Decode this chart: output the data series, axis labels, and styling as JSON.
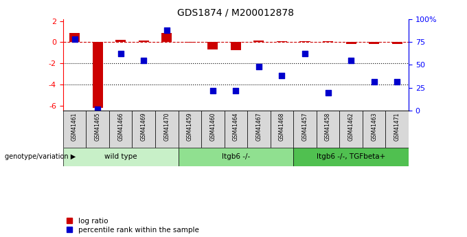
{
  "title": "GDS1874 / M200012878",
  "samples": [
    "GSM41461",
    "GSM41465",
    "GSM41466",
    "GSM41469",
    "GSM41470",
    "GSM41459",
    "GSM41460",
    "GSM41464",
    "GSM41467",
    "GSM41468",
    "GSM41457",
    "GSM41458",
    "GSM41462",
    "GSM41463",
    "GSM41471"
  ],
  "log_ratio": [
    0.85,
    -6.2,
    0.2,
    0.18,
    0.85,
    -0.05,
    -0.7,
    -0.75,
    0.15,
    0.12,
    0.12,
    0.12,
    -0.18,
    -0.15,
    -0.15
  ],
  "percentile": [
    78,
    2,
    62,
    55,
    88,
    null,
    22,
    22,
    48,
    38,
    62,
    20,
    55,
    32,
    32
  ],
  "groups": [
    {
      "label": "wild type",
      "start": 0,
      "end": 5,
      "color": "#c8f0c8"
    },
    {
      "label": "Itgb6 -/-",
      "start": 5,
      "end": 10,
      "color": "#90e090"
    },
    {
      "label": "Itgb6 -/-, TGFbeta+",
      "start": 10,
      "end": 15,
      "color": "#50c050"
    }
  ],
  "ylim_left": [
    -6.5,
    2.2
  ],
  "ylim_right": [
    0,
    100
  ],
  "yticks_left": [
    -6,
    -4,
    -2,
    0,
    2
  ],
  "yticks_right": [
    0,
    25,
    50,
    75,
    100
  ],
  "dotted_lines": [
    -2,
    -4
  ],
  "bar_color": "#cc0000",
  "dot_color": "#0000cc",
  "bar_width": 0.45,
  "dot_size": 28,
  "legend_items": [
    {
      "label": "log ratio",
      "color": "#cc0000"
    },
    {
      "label": "percentile rank within the sample",
      "color": "#0000cc"
    }
  ],
  "genotype_label": "genotype/variation",
  "background_color": "#ffffff"
}
